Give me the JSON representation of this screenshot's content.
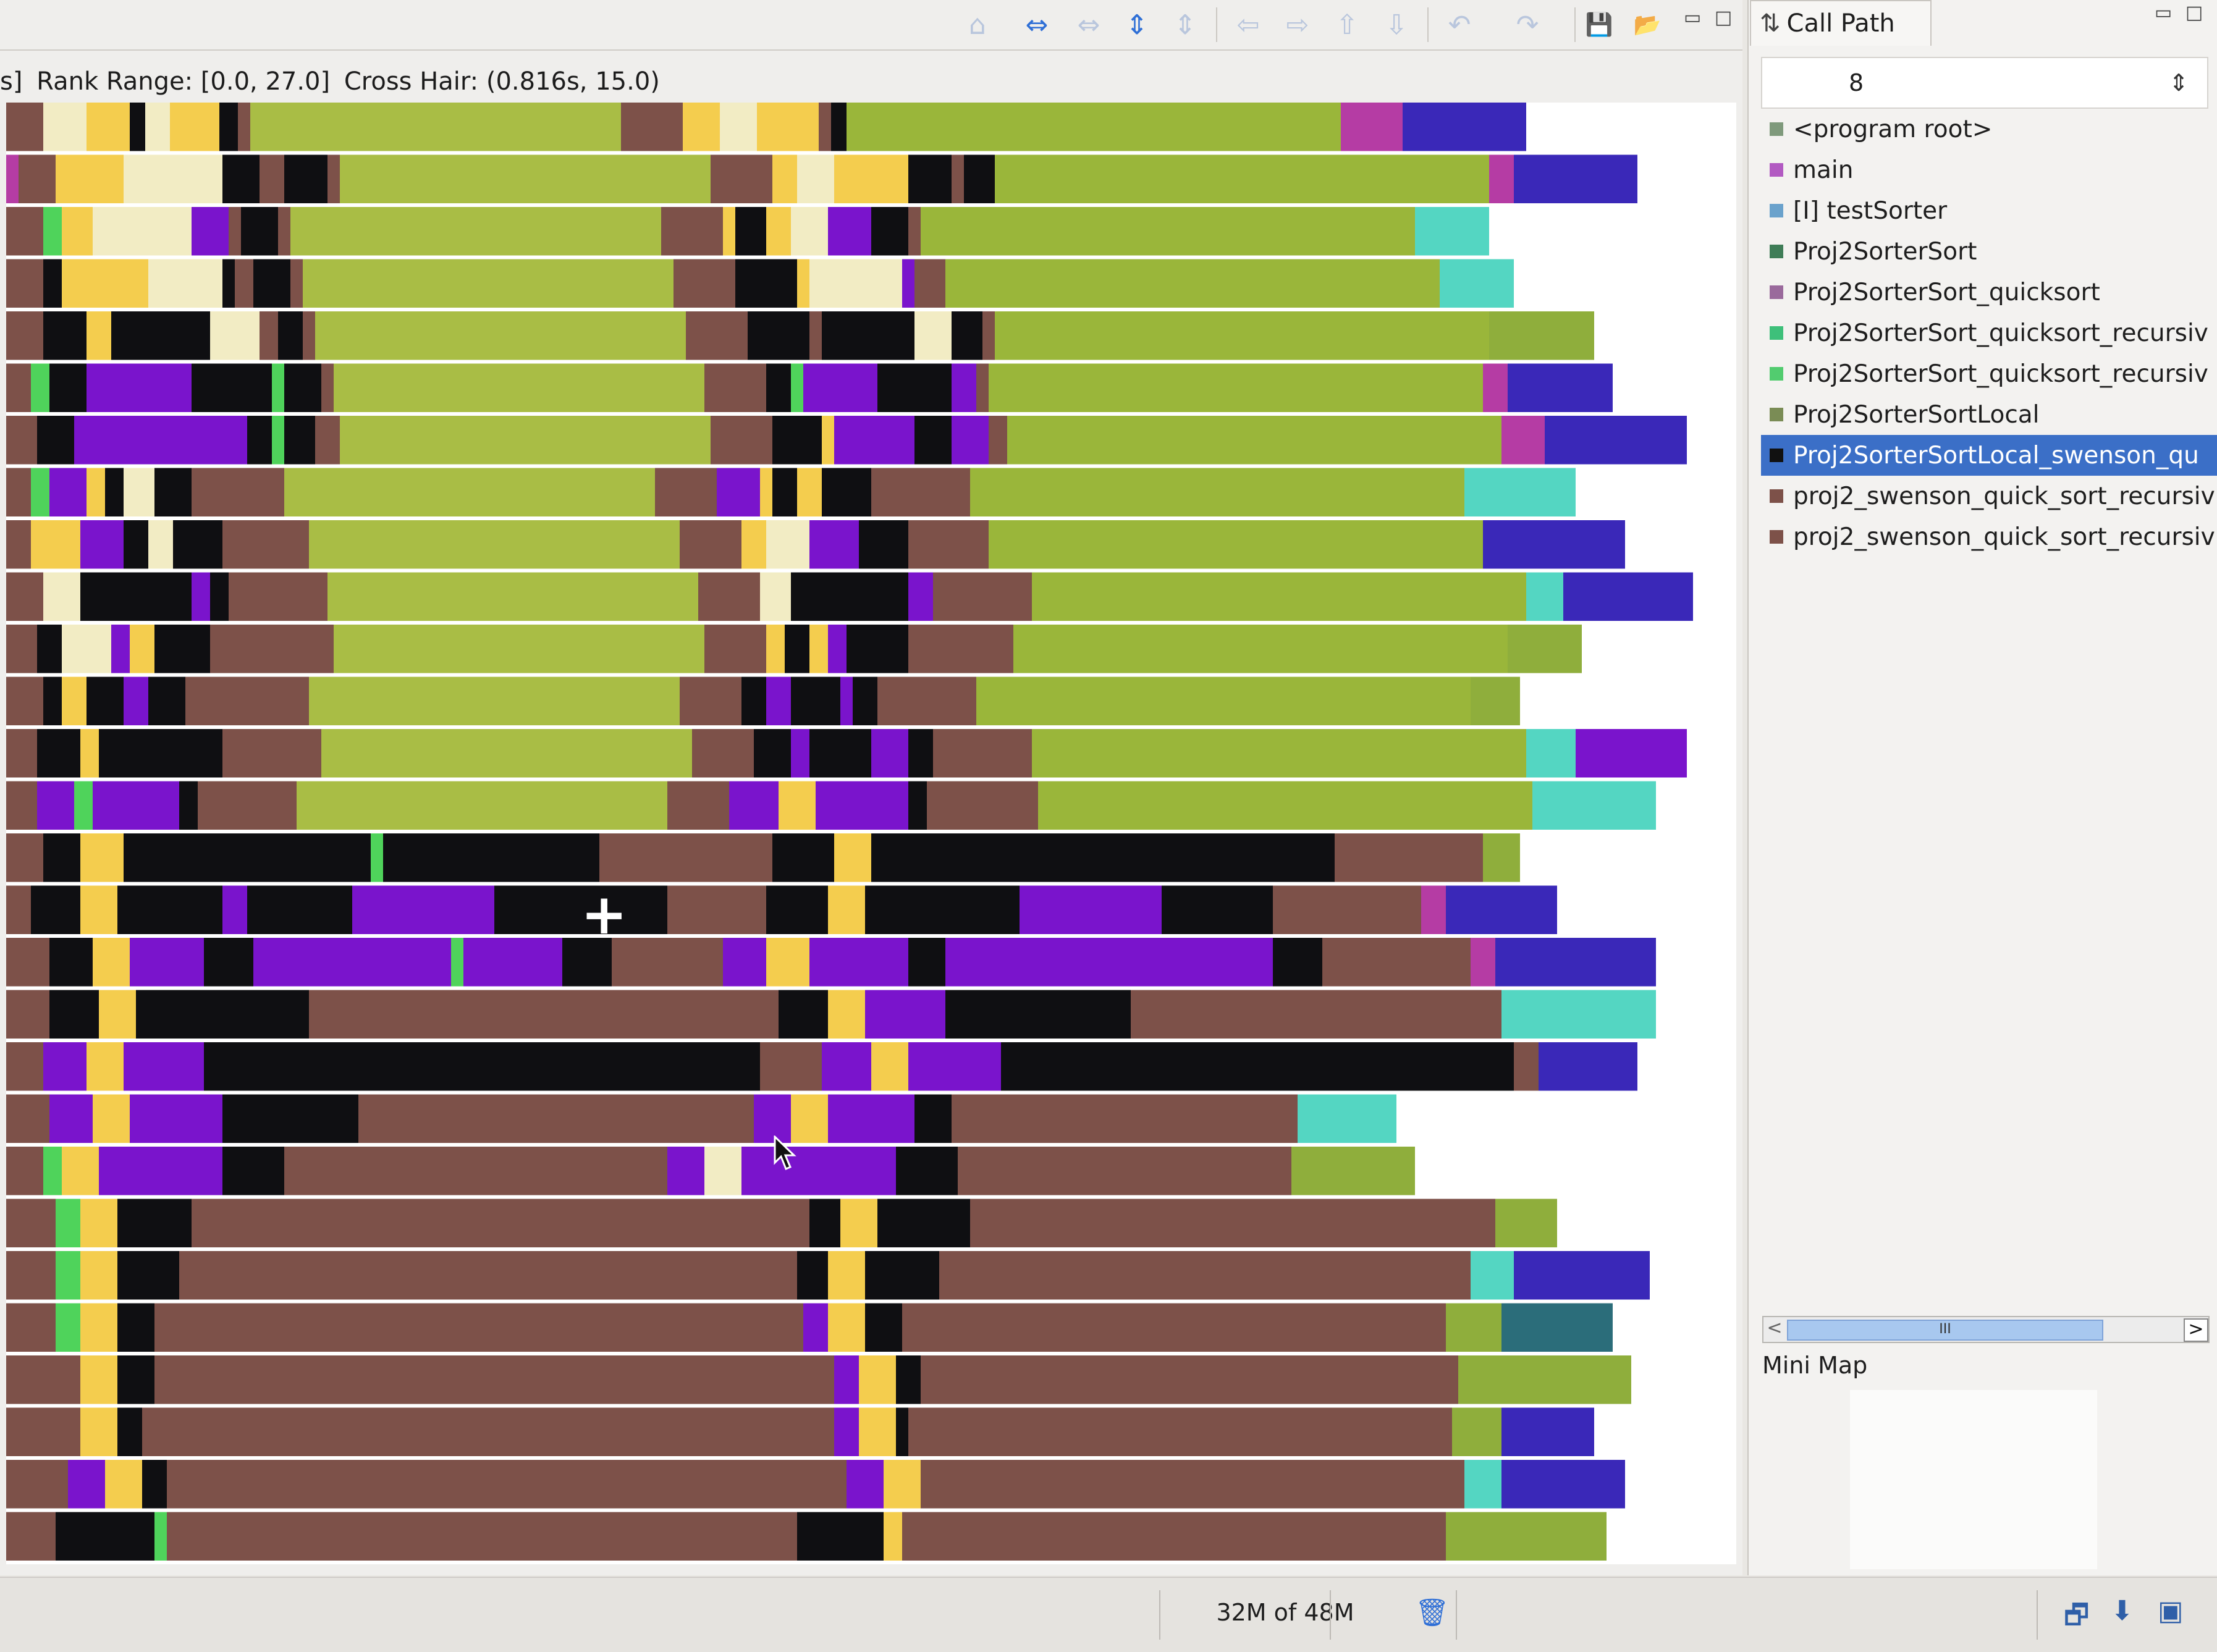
{
  "toolbar": {
    "icons": [
      "home-icon",
      "zoom-in-h-icon",
      "zoom-out-h-icon",
      "zoom-in-v-icon",
      "zoom-out-v-icon",
      "left-icon",
      "right-icon",
      "up-icon",
      "down-icon",
      "undo-icon",
      "redo-icon",
      "save-icon",
      "open-icon"
    ],
    "glyphs": {
      "home": "⌂",
      "zoom_in_h": "⇔",
      "zoom_out_h": "⇔",
      "zoom_in_v": "⇕",
      "zoom_out_v": "⇕",
      "left": "⇦",
      "right": "⇨",
      "up": "⇧",
      "down": "⇩",
      "undo": "↶",
      "redo": "↷",
      "save": "💾",
      "open": "📂",
      "minimize": "▭",
      "maximize": "□"
    }
  },
  "info_bar": {
    "time_fragment": "s]",
    "rank_range": "Rank Range: [0.0, 27.0]",
    "cross_hair": "Cross Hair: (0.816s, 15.0)"
  },
  "trace": {
    "crosshair_glyph": "+",
    "colors": {
      "Y": "#f4cd4e",
      "C": "#f2ecc4",
      "K": "#0f0f12",
      "P": "#7a14cc",
      "R": "#7d5149",
      "G": "#a9bd45",
      "L": "#4fd35b",
      "T": "#54d6c2",
      "B": "#3a28b8",
      "M": "#b53ca4",
      "E": "#8fae3c",
      "S": "#2b6d7a",
      "N": "#ff3a20",
      "Q": "#9ab63a"
    },
    "rows": [
      [
        "R60 C70 Y70 K25 C40 Y80 K30 R20 G600 R100 Y60 C60 Y100 R20 K25 Q800 M100 B200"
      ],
      [
        "M20 R60 Y110 C160 K60 R40 K70 R20 G600 R100 Y40 C60 Y120 K70 R20 K50 Q800 M40 B200"
      ],
      [
        "R60 L30 Y50 C160 P60 R20 K60 R20 G600 R100 Y20 K50 Y40 C60 P70 K60 R20 Q800 T120"
      ],
      [
        "R60 K30 Y140 C120 K20 R30 K60 R20 G600 R100 K100 Y20 C150 P20 R30 R20 Q800 T120"
      ],
      [
        "R60 K70 Y40 K160 C80 R30 K40 R20 G600 R100 K100 R20 K150 C60 K50 R20 Q800 E170"
      ],
      [
        "R40 L30 K60 P170 K130 L20 K60 R20 G600 R100 K40 L20 P120 K120 P40 R20 Q800 M40 B170"
      ],
      [
        "R50 K60 P180 P100 K40 L20 K50 R40 G600 R100 K80 Y20 P130 K60 P60 R30 Q800 M70 B230"
      ],
      [
        "R40 L30 P60 Y30 K30 C50 K60 R150 G600 R100 P70 Y20 K40 Y40 K80 R160 Q800 T180"
      ],
      [
        "R40 Y80 P70 K40 C40 K80 R140 G600 R100 Y40 C70 P80 K80 R130 Q800 B230"
      ],
      [
        "R60 C60 K50 K130 P30 K30 R160 G600 R100 C50 K50 K140 P40 R160 Q800 T60 B210"
      ],
      [
        "R50 K40 C80 P30 Y40 K90 R200 G600 R100 Y30 K40 Y30 P30 K100 R170 Q800 E120"
      ],
      [
        "R60 K30 Y40 K60 P40 K60 R200 G600 R100 K40 P40 K80 P20 K40 R160 Q800 E80"
      ],
      [
        "R50 K70 Y30 K200 R160 G600 R100 K60 P30 K100 P60 K40 R160 Q800 T80 P180"
      ],
      [
        "R50 P60 L30 P80 P60 K30 R160 G600 R100 P80 Y60 P90 P60 K30 R180 Q800 T200"
      ],
      [
        "R60 K60 Y70 K400 L20 K350 R220 R60 K100 Y60 K200 K350 K200 R240 E60"
      ],
      [
        "R40 K80 Y60 K170 P40 K170 P230 K280 R160 K100 Y60 K100 K150 P230 K180 R240 M40 B180"
      ],
      [
        "R70 K70 Y60 P120 K80 P320 L20 P160 K80 R180 P70 Y70 P160 K60 P350 P180 K80 R240 M40 B260"
      ],
      [
        "R70 K80 Y60 K120 K160 R700 R60 K80 Y60 P130 K300 R600 T250"
      ],
      [
        "R60 P70 Y60 P130 K60 K220 K620 R100 P80 Y60 P150 K190 K640 R40 B160"
      ],
      [
        "R70 P70 Y60 P150 K70 K150 R580 R60 P60 Y60 P140 K60 R560 T160"
      ],
      [
        "R60 L30 Y60 P130 P70 K100 R560 R60 P60 C60 P150 P100 K100 R540 E200"
      ],
      [
        "R80 L40 Y60 K120 R900 R100 K50 Y60 K150 R850 E100"
      ],
      [
        "R80 L40 Y60 K100 R900 R100 K50 Y60 K120 R860 T70 B220"
      ],
      [
        "R80 L40 Y60 K60 R950 R100 P40 Y60 K60 R880 E90 S180"
      ],
      [
        "R120 Y60 K60 R1000 R100 P40 Y60 K40 R870 E280"
      ],
      [
        "R120 Y60 K40 R1020 R100 P40 Y60 K20 R880 E80 B150"
      ],
      [
        "R100 P60 Y60 K40 R1000 R100 P60 Y60 R880 T60 B200"
      ],
      [
        "R80 K160 L20 R920 R100 K140 Y30 R880 E260"
      ]
    ]
  },
  "call_path": {
    "tab_label": "Call Path",
    "depth_value": "8",
    "items": [
      {
        "label": "<program root>",
        "color": "#7f9a7c"
      },
      {
        "label": "main",
        "color": "#b25ac2"
      },
      {
        "label": "[I] testSorter",
        "color": "#6aa2cc"
      },
      {
        "label": "Proj2SorterSort",
        "color": "#3f7d57"
      },
      {
        "label": "Proj2SorterSort_quicksort",
        "color": "#9a6a9c"
      },
      {
        "label": "Proj2SorterSort_quicksort_recursiv",
        "color": "#3ec07a"
      },
      {
        "label": "Proj2SorterSort_quicksort_recursiv",
        "color": "#52cc6f"
      },
      {
        "label": "Proj2SorterSortLocal",
        "color": "#7a8c55"
      },
      {
        "label": "Proj2SorterSortLocal_swenson_qu",
        "color": "#111111",
        "selected": true
      },
      {
        "label": "proj2_swenson_quick_sort_recursiv",
        "color": "#7d5149"
      },
      {
        "label": "proj2_swenson_quick_sort_recursiv",
        "color": "#7d5149"
      }
    ],
    "scroll_glyph": "III",
    "scroll_left": "<",
    "scroll_right": ">"
  },
  "mini_map": {
    "title": "Mini Map"
  },
  "status": {
    "memory": "32M of 48M",
    "gc_glyph": "🗑"
  }
}
